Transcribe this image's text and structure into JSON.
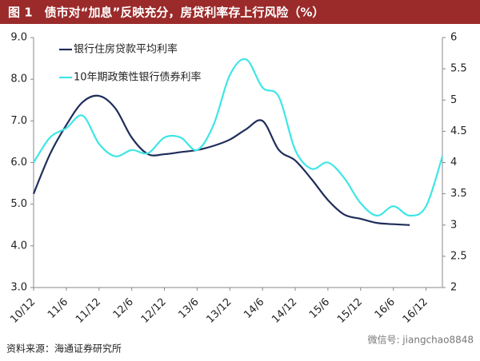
{
  "chart_data": {
    "type": "line",
    "title": "图 1　债市对“加息”反映充分，房贷利率存上行风险（%）",
    "categories": [
      "10/12",
      null,
      "11/6",
      null,
      "11/12",
      null,
      "12/6",
      null,
      "12/12",
      null,
      "13/6",
      null,
      "13/12",
      null,
      "14/6",
      null,
      "14/12",
      null,
      "15/6",
      null,
      "15/12",
      null,
      "16/6",
      null,
      "16/12",
      null
    ],
    "series": [
      {
        "name": "银行住房贷款平均利率",
        "color": "#1f2d5a",
        "axis": "y",
        "values": [
          5.25,
          6.2,
          6.9,
          7.45,
          7.6,
          7.3,
          6.6,
          6.2,
          6.2,
          6.25,
          6.3,
          6.4,
          6.55,
          6.8,
          7.0,
          6.3,
          6.05,
          5.6,
          5.1,
          4.75,
          4.65,
          4.55,
          4.52,
          4.5,
          null,
          null
        ]
      },
      {
        "name": "10年期政策性银行债券利率",
        "color": "#3fe6e6",
        "axis": "y2",
        "values": [
          4.0,
          4.4,
          4.55,
          4.75,
          4.3,
          4.1,
          4.2,
          4.15,
          4.4,
          4.4,
          4.2,
          4.6,
          5.4,
          5.65,
          5.2,
          5.05,
          4.2,
          3.9,
          4.0,
          3.75,
          3.35,
          3.15,
          3.3,
          3.15,
          3.3,
          4.1
        ]
      }
    ],
    "ylim": [
      3,
      9
    ],
    "yticks": [
      {
        "value": 3,
        "label": "3.0"
      },
      {
        "value": 4,
        "label": "4.0"
      },
      {
        "value": 5,
        "label": "5.0"
      },
      {
        "value": 6,
        "label": "6.0"
      },
      {
        "value": 7,
        "label": "7.0"
      },
      {
        "value": 8,
        "label": "8.0"
      },
      {
        "value": 9,
        "label": "9.0"
      }
    ],
    "y2lim": [
      2,
      6
    ],
    "y2ticks": [
      2,
      2.5,
      3,
      3.5,
      4,
      4.5,
      5,
      5.5,
      6
    ],
    "legend": "top-left",
    "source": "资料来源：海通证券研究所",
    "watermark": "微信号: jiangchao8848"
  }
}
